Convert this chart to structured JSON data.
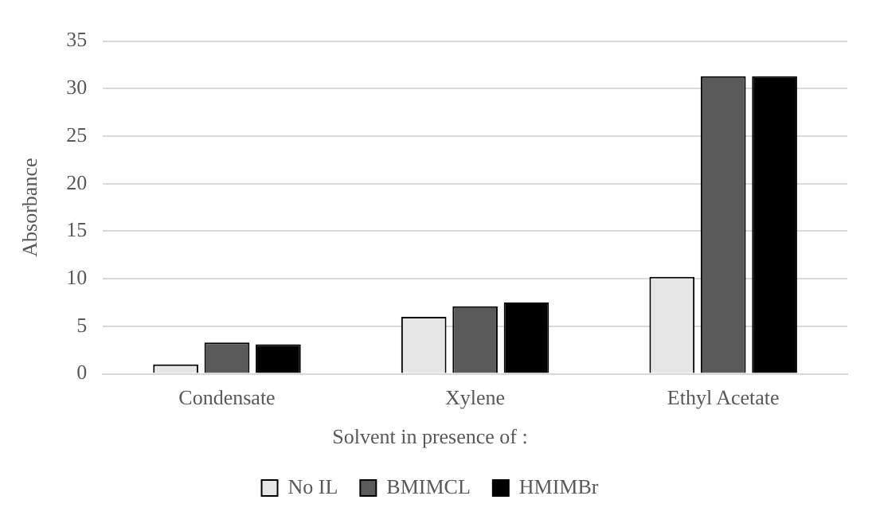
{
  "chart_data": {
    "type": "bar",
    "ylabel": "Absorbance",
    "legend_title": "Solvent in presence of :",
    "categories": [
      "Condensate",
      "Xylene",
      "Ethyl Acetate"
    ],
    "series": [
      {
        "name": "No IL",
        "color": "#e6e6e6",
        "values": [
          1.0,
          6.0,
          10.2
        ]
      },
      {
        "name": "BMIMCL",
        "color": "#5a5a5a",
        "values": [
          3.3,
          7.1,
          31.3
        ]
      },
      {
        "name": "HMIMBr",
        "color": "#000000",
        "values": [
          3.1,
          7.5,
          31.3
        ]
      }
    ],
    "ylim": [
      0,
      35
    ],
    "yticks": [
      0,
      5,
      10,
      15,
      20,
      25,
      30,
      35
    ],
    "grid": "y",
    "legend": "bottom"
  }
}
